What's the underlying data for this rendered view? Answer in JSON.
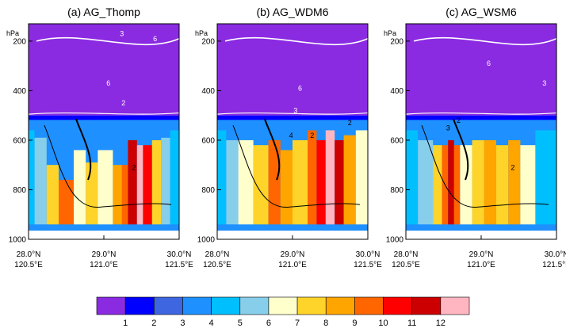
{
  "chart_data": [
    {
      "type": "heatmap",
      "title": "(a) AG_Thomp",
      "ylabel": "hPa",
      "ylim": [
        1000,
        130
      ],
      "yticks": [
        200,
        400,
        600,
        800,
        1000
      ],
      "xticks": [
        {
          "lat": "28.0°N",
          "lon": "120.5°E"
        },
        {
          "lat": "29.0°N",
          "lon": "121.0°E"
        },
        {
          "lat": "30.0°N",
          "lon": "121.5°E"
        }
      ],
      "field_bands": [
        {
          "x": [
            0.0,
            0.04
          ],
          "pmax": 560,
          "level": 4
        },
        {
          "x": [
            0.04,
            0.12
          ],
          "pmax": 590,
          "level": 5
        },
        {
          "x": [
            0.12,
            0.2
          ],
          "pmax": 700,
          "level": 7
        },
        {
          "x": [
            0.2,
            0.3
          ],
          "pmax": 760,
          "level": 9
        },
        {
          "x": [
            0.3,
            0.38
          ],
          "pmax": 640,
          "level": 6
        },
        {
          "x": [
            0.38,
            0.46
          ],
          "pmax": 690,
          "level": 7
        },
        {
          "x": [
            0.46,
            0.56
          ],
          "pmax": 640,
          "level": 6
        },
        {
          "x": [
            0.56,
            0.62
          ],
          "pmax": 700,
          "level": 8
        },
        {
          "x": [
            0.62,
            0.66
          ],
          "pmax": 700,
          "level": 9
        },
        {
          "x": [
            0.66,
            0.72
          ],
          "pmax": 600,
          "level": 11
        },
        {
          "x": [
            0.72,
            0.76
          ],
          "pmax": 620,
          "level": 12
        },
        {
          "x": [
            0.76,
            0.82
          ],
          "pmax": 620,
          "level": 10
        },
        {
          "x": [
            0.82,
            0.88
          ],
          "pmax": 600,
          "level": 7
        },
        {
          "x": [
            0.88,
            0.94
          ],
          "pmax": 590,
          "level": 5
        },
        {
          "x": [
            0.94,
            1.0
          ],
          "pmax": 560,
          "level": 4
        }
      ],
      "contour_labels": [
        {
          "text": "3",
          "x": 0.62,
          "p": 180
        },
        {
          "text": "6",
          "x": 0.84,
          "p": 200
        },
        {
          "text": "6",
          "x": 0.53,
          "p": 380
        },
        {
          "text": "2",
          "x": 0.63,
          "p": 460
        },
        {
          "text": "2",
          "x": 0.7,
          "p": 720
        }
      ]
    },
    {
      "type": "heatmap",
      "title": "(b) AG_WDM6",
      "ylabel": "hPa",
      "ylim": [
        1000,
        130
      ],
      "yticks": [
        200,
        400,
        600,
        800,
        1000
      ],
      "xticks": [
        {
          "lat": "28.0°N",
          "lon": "120.5°E"
        },
        {
          "lat": "29.0°N",
          "lon": "121.0°E"
        },
        {
          "lat": "30.0°N",
          "lon": "121.5°E"
        }
      ],
      "field_bands": [
        {
          "x": [
            0.0,
            0.06
          ],
          "pmax": 560,
          "level": 4
        },
        {
          "x": [
            0.06,
            0.14
          ],
          "pmax": 600,
          "level": 5
        },
        {
          "x": [
            0.14,
            0.24
          ],
          "pmax": 600,
          "level": 6
        },
        {
          "x": [
            0.24,
            0.34
          ],
          "pmax": 620,
          "level": 7
        },
        {
          "x": [
            0.34,
            0.42
          ],
          "pmax": 600,
          "level": 9
        },
        {
          "x": [
            0.42,
            0.5
          ],
          "pmax": 640,
          "level": 8
        },
        {
          "x": [
            0.5,
            0.6
          ],
          "pmax": 600,
          "level": 7
        },
        {
          "x": [
            0.6,
            0.66
          ],
          "pmax": 560,
          "level": 9
        },
        {
          "x": [
            0.66,
            0.72
          ],
          "pmax": 600,
          "level": 10
        },
        {
          "x": [
            0.72,
            0.78
          ],
          "pmax": 560,
          "level": 12
        },
        {
          "x": [
            0.78,
            0.84
          ],
          "pmax": 600,
          "level": 11
        },
        {
          "x": [
            0.84,
            0.92
          ],
          "pmax": 580,
          "level": 8
        },
        {
          "x": [
            0.92,
            1.0
          ],
          "pmax": 560,
          "level": 6
        }
      ],
      "contour_labels": [
        {
          "text": "6",
          "x": 0.55,
          "p": 400
        },
        {
          "text": "3",
          "x": 0.52,
          "p": 490
        },
        {
          "text": "2",
          "x": 0.63,
          "p": 590
        },
        {
          "text": "4",
          "x": 0.49,
          "p": 590
        },
        {
          "text": "2",
          "x": 0.88,
          "p": 540
        }
      ]
    },
    {
      "type": "heatmap",
      "title": "(c) AG_WSM6",
      "ylabel": "hPa",
      "ylim": [
        1000,
        130
      ],
      "yticks": [
        200,
        400,
        600,
        800,
        1000
      ],
      "xticks": [
        {
          "lat": "28.0°N",
          "lon": "120.5°E"
        },
        {
          "lat": "29.0°N",
          "lon": "121.0°E"
        },
        {
          "lat": "30.0°N",
          "lon": "121.5°E"
        }
      ],
      "field_bands": [
        {
          "x": [
            0.0,
            0.08
          ],
          "pmax": 560,
          "level": 4
        },
        {
          "x": [
            0.08,
            0.18
          ],
          "pmax": 600,
          "level": 5
        },
        {
          "x": [
            0.18,
            0.24
          ],
          "pmax": 620,
          "level": 7
        },
        {
          "x": [
            0.24,
            0.28
          ],
          "pmax": 620,
          "level": 9
        },
        {
          "x": [
            0.28,
            0.32
          ],
          "pmax": 600,
          "level": 11
        },
        {
          "x": [
            0.32,
            0.36
          ],
          "pmax": 620,
          "level": 9
        },
        {
          "x": [
            0.36,
            0.44
          ],
          "pmax": 620,
          "level": 6
        },
        {
          "x": [
            0.44,
            0.52
          ],
          "pmax": 600,
          "level": 7
        },
        {
          "x": [
            0.52,
            0.6
          ],
          "pmax": 600,
          "level": 8
        },
        {
          "x": [
            0.6,
            0.68
          ],
          "pmax": 620,
          "level": 7
        },
        {
          "x": [
            0.68,
            0.76
          ],
          "pmax": 600,
          "level": 8
        },
        {
          "x": [
            0.76,
            0.86
          ],
          "pmax": 620,
          "level": 6
        },
        {
          "x": [
            0.86,
            1.0
          ],
          "pmax": 560,
          "level": 4
        }
      ],
      "contour_labels": [
        {
          "text": "6",
          "x": 0.55,
          "p": 300
        },
        {
          "text": "3",
          "x": 0.92,
          "p": 380
        },
        {
          "text": "2",
          "x": 0.35,
          "p": 530
        },
        {
          "text": "3",
          "x": 0.28,
          "p": 560
        },
        {
          "text": "2",
          "x": 0.71,
          "p": 720
        }
      ]
    }
  ],
  "colorbar": {
    "levels": [
      "1",
      "2",
      "3",
      "4",
      "5",
      "6",
      "7",
      "8",
      "9",
      "10",
      "11",
      "12"
    ],
    "colors": [
      "#8a2be2",
      "#0000ff",
      "#3d66e0",
      "#1e90ff",
      "#00bfff",
      "#87ceeb",
      "#ffffcc",
      "#ffd42a",
      "#ffa500",
      "#ff6600",
      "#ff0000",
      "#cc0000",
      "#ffb6c1"
    ]
  },
  "colors": {
    "upper_fill": "#8a2be2",
    "ground_fill": "#ffffff",
    "contour_black": "#000000",
    "contour_white": "#ffffff"
  }
}
